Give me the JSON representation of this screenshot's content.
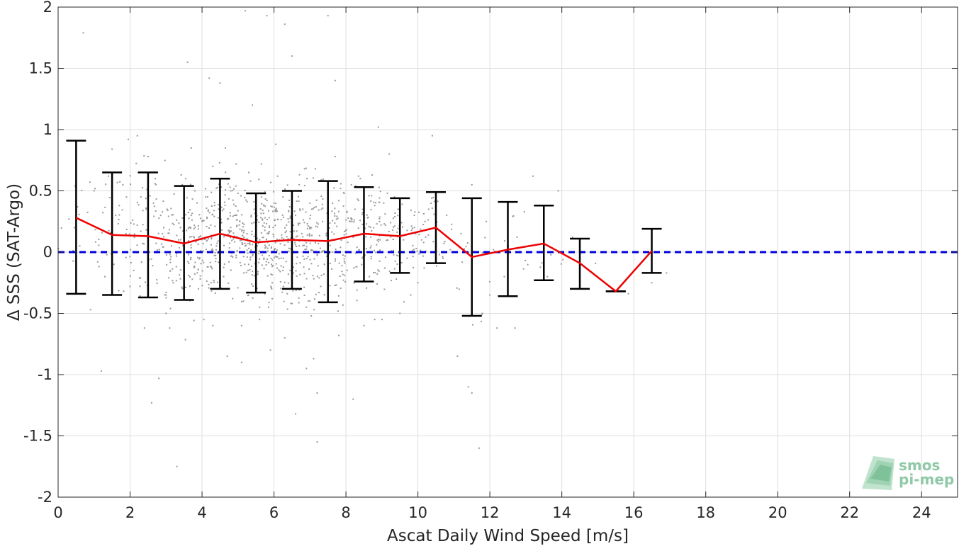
{
  "chart_data": {
    "type": "scatter",
    "xlabel": "Ascat Daily Wind Speed [m/s]",
    "ylabel": "Δ SSS (SAT-Argo)",
    "xlim": [
      0,
      25
    ],
    "ylim": [
      -2,
      2
    ],
    "xticks": [
      0,
      2,
      4,
      6,
      8,
      10,
      12,
      14,
      16,
      18,
      20,
      22,
      24
    ],
    "yticks": [
      -2,
      -1.5,
      -1,
      -0.5,
      0,
      0.5,
      1,
      1.5,
      2
    ],
    "xtick_labels": [
      "0",
      "2",
      "4",
      "6",
      "8",
      "10",
      "12",
      "14",
      "16",
      "18",
      "20",
      "22",
      "24"
    ],
    "ytick_labels": [
      "-2",
      "-1.5",
      "-1",
      "-0.5",
      "0",
      "0.5",
      "1",
      "1.5",
      "2"
    ],
    "grid": true,
    "reference_line": {
      "y": 0,
      "style": "dashed",
      "color": "#0000dd"
    },
    "mean_series": {
      "color": "#ee0000",
      "x": [
        0.5,
        1.5,
        2.5,
        3.5,
        4.5,
        5.5,
        6.5,
        7.5,
        8.5,
        9.5,
        10.5,
        11.5,
        12.5,
        13.5,
        14.5,
        15.5,
        16.5
      ],
      "y": [
        0.28,
        0.14,
        0.13,
        0.07,
        0.15,
        0.08,
        0.1,
        0.09,
        0.15,
        0.13,
        0.2,
        -0.04,
        0.02,
        0.07,
        -0.09,
        -0.32,
        0.01
      ],
      "err_low": [
        -0.34,
        -0.35,
        -0.37,
        -0.39,
        -0.3,
        -0.33,
        -0.3,
        -0.41,
        -0.24,
        -0.17,
        -0.09,
        -0.52,
        -0.36,
        -0.23,
        -0.3,
        -0.32,
        -0.17
      ],
      "err_high": [
        0.91,
        0.65,
        0.65,
        0.54,
        0.6,
        0.48,
        0.5,
        0.58,
        0.53,
        0.44,
        0.49,
        0.44,
        0.41,
        0.38,
        0.11,
        -0.32,
        0.19
      ]
    },
    "scatter_points": {
      "color": "#9a9a9a",
      "x": [
        0.7,
        0.3,
        0.9,
        1.2,
        1.5,
        1.9,
        2.4,
        2.6,
        2.8,
        3.1,
        3.3,
        3.6,
        3.9,
        4.2,
        4.5,
        4.7,
        5.1,
        5.2,
        5.4,
        5.6,
        5.8,
        5.9,
        6.3,
        6.5,
        6.6,
        6.9,
        7.1,
        7.2,
        7.5,
        7.7,
        8.2,
        8.5,
        8.9,
        9.2,
        9.5,
        9.8,
        10.4,
        11.1,
        11.4,
        11.7,
        12.2,
        12.7,
        13.2,
        13.9,
        14.3,
        16.5,
        1.7,
        2.2,
        3.4,
        4.1,
        4.9,
        5.7,
        6.2,
        6.8,
        7.4,
        8.1,
        8.7,
        9.3,
        10.1,
        10.8,
        1.3,
        1.8,
        2.1,
        2.7,
        3.2,
        3.7,
        4.3,
        4.6,
        5.0,
        5.3,
        5.5,
        6.0,
        6.4,
        6.7,
        7.0,
        7.3,
        7.8,
        8.3,
        8.8,
        9.1,
        9.7,
        10.3,
        11.2,
        12.5,
        0.6,
        1.1,
        1.6,
        2.3,
        2.9,
        3.5,
        4.0,
        4.4,
        4.8,
        5.25,
        5.75,
        6.1,
        6.55,
        7.05,
        7.6,
        8.05,
        8.6,
        9.05,
        9.6,
        10.6,
        11.9,
        13.1,
        2.5,
        3.0,
        3.8,
        4.25,
        4.65,
        5.15,
        5.45,
        5.65,
        5.95,
        6.25,
        6.45,
        6.85,
        7.25,
        7.85,
        8.45,
        9.4,
        10.2,
        1.4,
        2.0,
        2.65,
        3.15,
        3.55,
        3.95,
        4.35,
        4.75,
        5.05,
        5.35,
        5.85,
        6.15,
        6.6,
        6.95,
        7.15,
        7.55,
        8.15,
        8.65,
        9.15,
        9.9,
        11.3,
        1.0,
        1.95,
        2.45,
        3.45,
        4.15,
        4.55,
        4.95,
        5.55,
        6.35,
        6.75,
        7.45,
        7.95,
        8.35,
        8.95,
        9.45,
        10.0,
        10.7,
        12.0,
        2.2,
        3.0,
        3.7,
        4.05,
        4.85,
        5.2,
        5.6,
        6.05,
        6.5,
        7.0,
        7.7,
        8.4,
        9.0,
        9.9,
        10.9,
        12.4,
        13.6,
        0.45,
        1.55,
        2.85,
        3.35,
        4.45,
        5.65,
        6.25,
        7.35,
        8.25,
        9.35,
        11.5,
        12.1,
        4.3,
        5.1,
        5.6,
        6.3,
        6.9,
        7.2,
        7.8,
        8.8,
        11.5
      ],
      "y": [
        1.79,
        0.27,
        -0.47,
        -0.97,
        0.84,
        0.45,
        -0.62,
        -1.23,
        -1.03,
        -0.62,
        -1.75,
        1.55,
        -0.3,
        1.42,
        1.38,
        -0.85,
        -0.9,
        1.97,
        1.2,
        -0.55,
        1.93,
        -0.8,
        1.86,
        1.6,
        -1.32,
        -0.45,
        -0.87,
        -1.55,
        1.93,
        1.4,
        -1.2,
        -0.6,
        1.02,
        0.8,
        -0.5,
        -0.35,
        0.95,
        -0.85,
        -1.1,
        -1.6,
        -0.62,
        -0.62,
        0.62,
        0.5,
        0.12,
        -0.25,
        0.38,
        0.22,
        0.2,
        0.45,
        0.3,
        0.12,
        -0.05,
        0.35,
        -0.1,
        0.25,
        0.05,
        0.18,
        0.1,
        0.3,
        -0.2,
        0.55,
        -0.15,
        0.6,
        -0.25,
        0.3,
        0.7,
        -0.2,
        0.48,
        0.65,
        -0.3,
        0.4,
        -0.18,
        0.55,
        0.2,
        -0.28,
        0.42,
        -0.12,
        0.38,
        0.22,
        -0.05,
        0.35,
        0.15,
        0.3,
        0.05,
        -0.08,
        0.3,
        0.45,
        0.15,
        -0.1,
        0.25,
        0.05,
        0.5,
        0.15,
        0.28,
        0.62,
        0.0,
        0.35,
        0.58,
        0.08,
        0.28,
        0.4,
        0.1,
        -0.02,
        0.25,
        0.05,
        0.78,
        -0.35,
        0.5,
        -0.25,
        0.85,
        -0.4,
        0.35,
        0.72,
        -0.38,
        0.45,
        -0.15,
        0.68,
        -0.33,
        0.52,
        -0.05,
        -0.22,
        0.25,
        0.62,
        -0.28,
        0.4,
        0.05,
        0.6,
        -0.22,
        0.38,
        -0.08,
        0.25,
        0.58,
        -0.45,
        0.1,
        0.3,
        -0.4,
        0.68,
        0.0,
        0.55,
        -0.2,
        0.48,
        0.3,
        0.0,
        0.5,
        0.92,
        0.35,
        0.55,
        -0.12,
        0.18,
        0.72,
        -0.18,
        0.22,
        -0.3,
        0.15,
        0.48,
        0.62,
        0.1,
        0.35,
        -0.25,
        -0.05,
        -0.35,
        0.95,
        -0.5,
        0.85,
        -0.55,
        -0.38,
        0.05,
        0.1,
        0.88,
        -0.42,
        0.4,
        0.78,
        0.6,
        -0.55,
        0.2,
        0.02,
        -0.2,
        -0.2,
        0.2,
        -0.1,
        0.3,
        0.1,
        0.28,
        0.45,
        -0.15,
        0.25,
        0.35,
        0.45,
        0.55,
        0.02,
        -0.6,
        -0.6,
        -0.45,
        -0.7,
        -0.95,
        -1.15,
        -0.68,
        -0.55,
        -1.15
      ]
    }
  },
  "logo": {
    "line1": "smos",
    "line2": "pi-mep"
  }
}
